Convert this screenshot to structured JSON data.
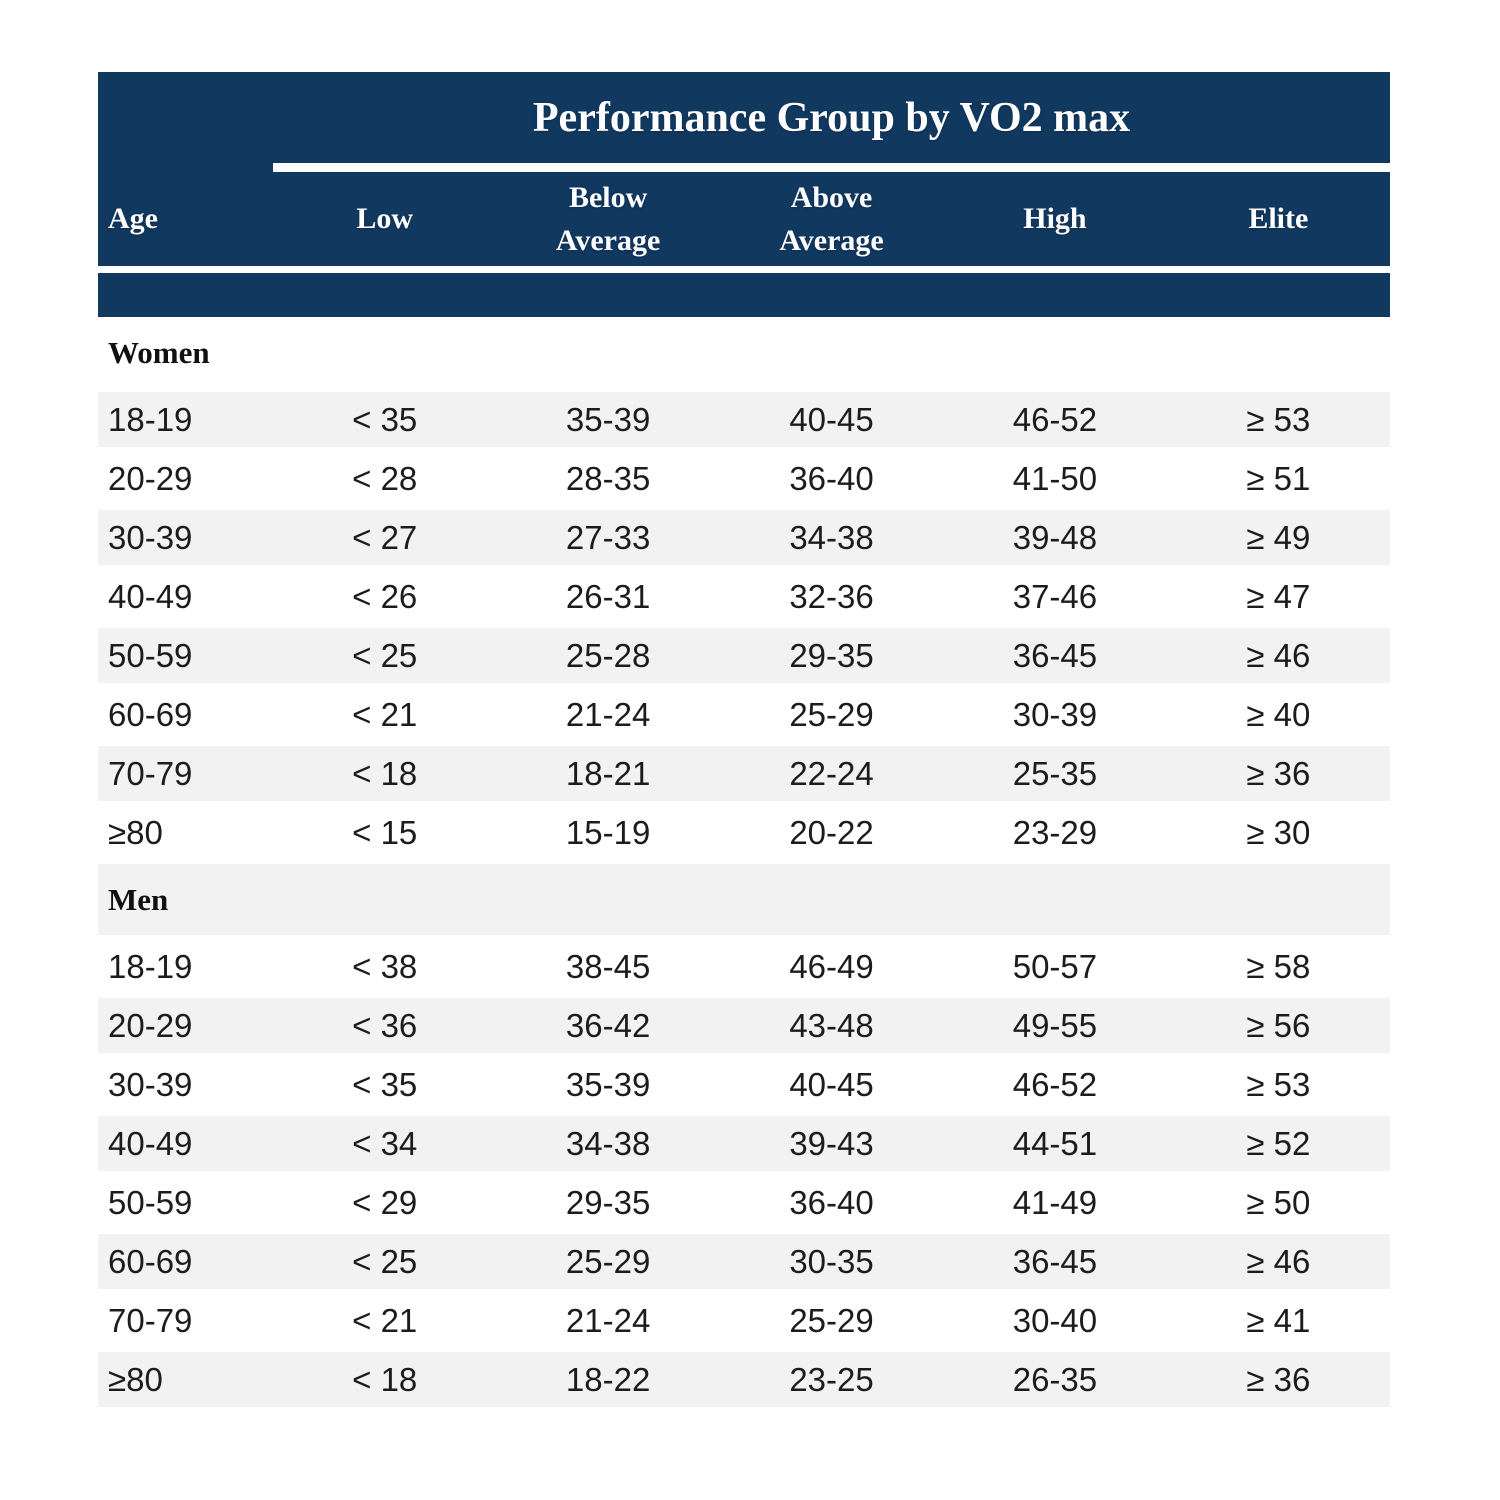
{
  "chart_data": {
    "type": "table",
    "title": "Performance Group by VO2 max",
    "columns": [
      "Age",
      "Low",
      "Below Average",
      "Above Average",
      "High",
      "Elite"
    ],
    "sections": [
      {
        "label": "Women",
        "rows": [
          [
            "18-19",
            "< 35",
            "35-39",
            "40-45",
            "46-52",
            "≥ 53"
          ],
          [
            "20-29",
            "< 28",
            "28-35",
            "36-40",
            "41-50",
            "≥ 51"
          ],
          [
            "30-39",
            "< 27",
            "27-33",
            "34-38",
            "39-48",
            "≥ 49"
          ],
          [
            "40-49",
            "< 26",
            "26-31",
            "32-36",
            "37-46",
            "≥ 47"
          ],
          [
            "50-59",
            "< 25",
            "25-28",
            "29-35",
            "36-45",
            "≥ 46"
          ],
          [
            "60-69",
            "< 21",
            "21-24",
            "25-29",
            "30-39",
            "≥ 40"
          ],
          [
            "70-79",
            "< 18",
            "18-21",
            "22-24",
            "25-35",
            "≥ 36"
          ],
          [
            "≥80",
            "< 15",
            "15-19",
            "20-22",
            "23-29",
            "≥ 30"
          ]
        ]
      },
      {
        "label": "Men",
        "rows": [
          [
            "18-19",
            "< 38",
            "38-45",
            "46-49",
            "50-57",
            "≥ 58"
          ],
          [
            "20-29",
            "< 36",
            "36-42",
            "43-48",
            "49-55",
            "≥ 56"
          ],
          [
            "30-39",
            "< 35",
            "35-39",
            "40-45",
            "46-52",
            "≥ 53"
          ],
          [
            "40-49",
            "< 34",
            "34-38",
            "39-43",
            "44-51",
            "≥ 52"
          ],
          [
            "50-59",
            "< 29",
            "29-35",
            "36-40",
            "41-49",
            "≥ 50"
          ],
          [
            "60-69",
            "< 25",
            "25-29",
            "30-35",
            "36-45",
            "≥ 46"
          ],
          [
            "70-79",
            "< 21",
            "21-24",
            "25-29",
            "30-40",
            "≥ 41"
          ],
          [
            "≥80",
            "< 18",
            "18-22",
            "23-25",
            "26-35",
            "≥ 36"
          ]
        ]
      }
    ],
    "layout_hints": {
      "header_background": "#11395f",
      "stripe_background": "#f2f2f2",
      "header_text_color": "#ffffff",
      "body_text_color": "#1c1c1c"
    }
  }
}
